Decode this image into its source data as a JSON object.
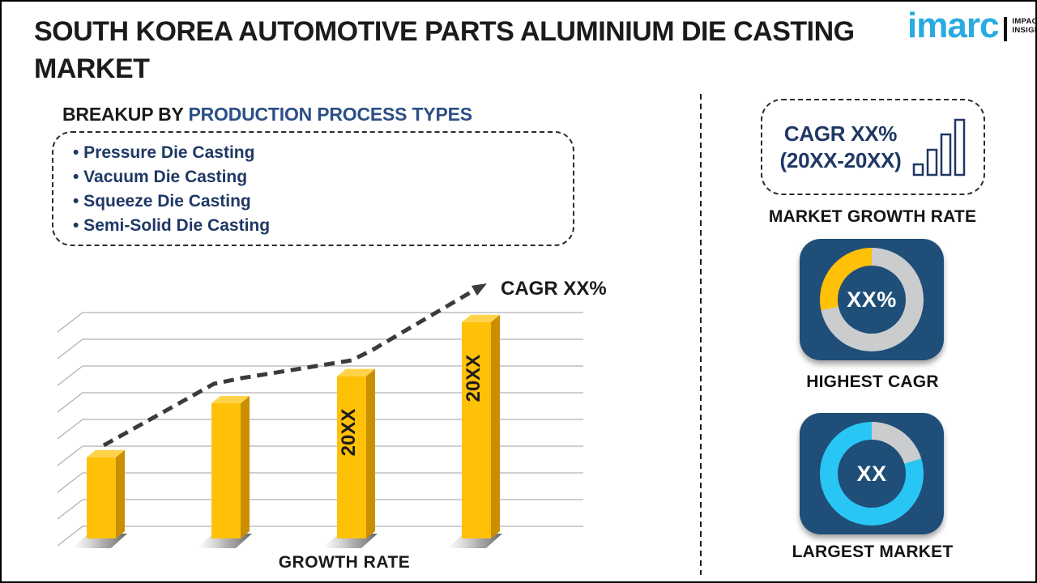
{
  "header": {
    "title_line1": "SOUTH KOREA AUTOMOTIVE PARTS ALUMINIUM DIE CASTING",
    "title_line2": "MARKET"
  },
  "logo": {
    "brand": "imarc",
    "tagline_line1": "IMPACTFUL",
    "tagline_line2": "INSIGHTS"
  },
  "breakup": {
    "heading_black": "BREAKUP BY",
    "heading_blue": "PRODUCTION PROCESS TYPES",
    "items": [
      "• Pressure Die Casting",
      "• Vacuum Die Casting",
      "• Squeeze Die Casting",
      "• Semi-Solid Die Casting"
    ]
  },
  "chart_data": {
    "type": "bar",
    "title": "",
    "xlabel": "GROWTH RATE",
    "ylabel": "",
    "categories": [
      "",
      "",
      "20XX",
      "20XX"
    ],
    "values": [
      3,
      5,
      6,
      8
    ],
    "values_note": "relative heights; no numeric axis shown in figure",
    "bar_labels": [
      "",
      "",
      "20XX",
      "20XX"
    ],
    "trend_label": "CAGR XX%",
    "trend_style": "dashed rising arrow",
    "grid": true,
    "gridline_count": 9,
    "legend": "none"
  },
  "right_panel": {
    "cagr_box": {
      "line1": "CAGR XX%",
      "line2": "(20XX-20XX)"
    },
    "market_growth_rate_label": "MARKET GROWTH RATE",
    "highest_cagr": {
      "value": "XX%",
      "label": "HIGHEST CAGR",
      "arc_deg": 102
    },
    "largest_market": {
      "value": "XX",
      "label": "LARGEST MARKET",
      "arc_deg": 73
    }
  },
  "colors": {
    "bar_front": "#FFC008",
    "bar_side": "#C98F00",
    "bar_top": "#FFD24A",
    "gridline": "#B2B2B2",
    "arrow": "#3B3B3B",
    "navy_text": "#1F3864",
    "heading_blue": "#2B4F86",
    "card_blue": "#1F4E78",
    "ring_gray": "#CACCCE",
    "ring_yellow": "#FFC008",
    "ring_cyan": "#29C5F4",
    "logo_blue": "#29ABE2"
  }
}
